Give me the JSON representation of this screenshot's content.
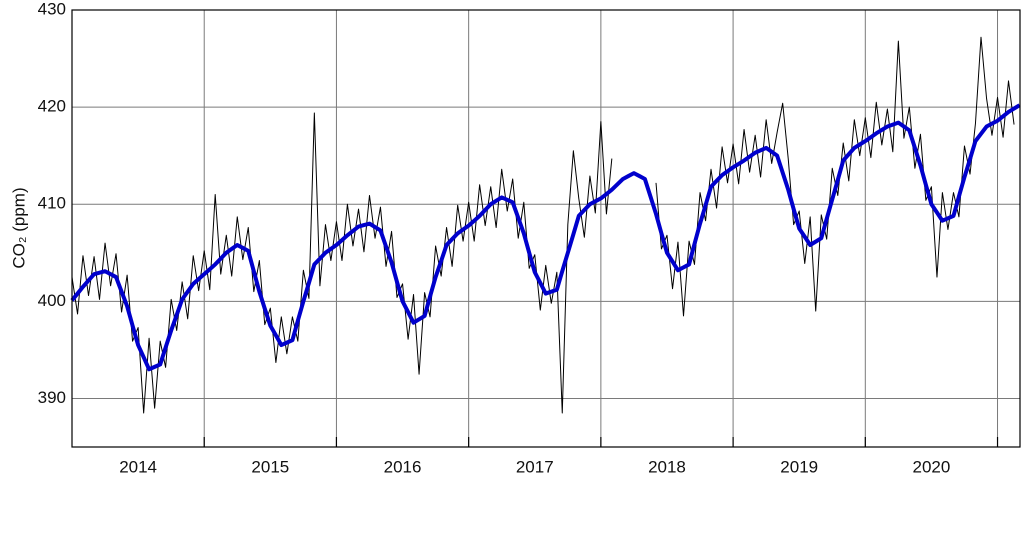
{
  "chart_data": {
    "type": "line",
    "y_label": "CO₂ (ppm)",
    "xlim": [
      2014,
      2021.17
    ],
    "xticks": [
      {
        "value": 2014.5,
        "label": "2014"
      },
      {
        "value": 2015.5,
        "label": "2015"
      },
      {
        "value": 2016.5,
        "label": "2016"
      },
      {
        "value": 2017.5,
        "label": "2017"
      },
      {
        "value": 2018.5,
        "label": "2018"
      },
      {
        "value": 2019.5,
        "label": "2019"
      },
      {
        "value": 2020.5,
        "label": "2020"
      }
    ],
    "xgridlines": [
      2015,
      2016,
      2017,
      2018,
      2019,
      2020,
      2021
    ],
    "ylim": [
      385,
      430
    ],
    "yticks": [
      390,
      400,
      410,
      420,
      430
    ],
    "grid": true,
    "x": [
      2014,
      2014.042,
      2014.083,
      2014.125,
      2014.167,
      2014.208,
      2014.25,
      2014.292,
      2014.333,
      2014.375,
      2014.417,
      2014.458,
      2014.5,
      2014.542,
      2014.583,
      2014.625,
      2014.667,
      2014.708,
      2014.75,
      2014.792,
      2014.833,
      2014.875,
      2014.917,
      2014.958,
      2015,
      2015.042,
      2015.083,
      2015.125,
      2015.167,
      2015.208,
      2015.25,
      2015.292,
      2015.333,
      2015.375,
      2015.417,
      2015.458,
      2015.5,
      2015.542,
      2015.583,
      2015.625,
      2015.667,
      2015.708,
      2015.75,
      2015.792,
      2015.833,
      2015.875,
      2015.917,
      2015.958,
      2016,
      2016.042,
      2016.083,
      2016.125,
      2016.167,
      2016.208,
      2016.25,
      2016.292,
      2016.333,
      2016.375,
      2016.417,
      2016.458,
      2016.5,
      2016.542,
      2016.583,
      2016.625,
      2016.667,
      2016.708,
      2016.75,
      2016.792,
      2016.833,
      2016.875,
      2016.917,
      2016.958,
      2017,
      2017.042,
      2017.083,
      2017.125,
      2017.167,
      2017.208,
      2017.25,
      2017.292,
      2017.333,
      2017.375,
      2017.417,
      2017.458,
      2017.5,
      2017.542,
      2017.583,
      2017.625,
      2017.667,
      2017.708,
      2017.75,
      2017.792,
      2017.833,
      2017.875,
      2017.917,
      2017.958,
      2018,
      2018.042,
      2018.083,
      2018.125,
      2018.167,
      2018.208,
      2018.25,
      2018.292,
      2018.333,
      2018.375,
      2018.417,
      2018.458,
      2018.5,
      2018.542,
      2018.583,
      2018.625,
      2018.667,
      2018.708,
      2018.75,
      2018.792,
      2018.833,
      2018.875,
      2018.917,
      2018.958,
      2019,
      2019.042,
      2019.083,
      2019.125,
      2019.167,
      2019.208,
      2019.25,
      2019.292,
      2019.333,
      2019.375,
      2019.417,
      2019.458,
      2019.5,
      2019.542,
      2019.583,
      2019.625,
      2019.667,
      2019.708,
      2019.75,
      2019.792,
      2019.833,
      2019.875,
      2019.917,
      2019.958,
      2020,
      2020.042,
      2020.083,
      2020.125,
      2020.167,
      2020.208,
      2020.25,
      2020.292,
      2020.333,
      2020.375,
      2020.417,
      2020.458,
      2020.5,
      2020.542,
      2020.583,
      2020.625,
      2020.667,
      2020.708,
      2020.75,
      2020.792,
      2020.833,
      2020.875,
      2020.917,
      2020.958,
      2021,
      2021.042,
      2021.083,
      2021.125,
      2021.167
    ],
    "series": [
      {
        "color": "#000000",
        "width": 1,
        "values": [
          402.5,
          398.7,
          404.7,
          400.6,
          404.6,
          400.2,
          406.0,
          401.6,
          404.9,
          398.9,
          402.7,
          395.9,
          397.3,
          388.5,
          396.2,
          389.0,
          395.9,
          393.2,
          400.2,
          397.0,
          402.0,
          398.2,
          404.7,
          401.1,
          405.2,
          401.2,
          411.0,
          402.8,
          406.8,
          402.6,
          408.7,
          404.3,
          407.6,
          401.0,
          404.2,
          397.6,
          399.3,
          393.7,
          398.4,
          394.6,
          398.4,
          395.9,
          403.2,
          400.3,
          419.4,
          401.6,
          407.9,
          404.2,
          408.2,
          404.2,
          410.0,
          405.7,
          409.5,
          405.1,
          410.9,
          406.5,
          409.7,
          403.6,
          407.2,
          400.4,
          401.8,
          396.1,
          400.7,
          392.5,
          400.9,
          398.4,
          405.7,
          402.6,
          407.6,
          403.6,
          409.9,
          406.2,
          410.2,
          406.2,
          412.0,
          407.8,
          411.8,
          407.6,
          413.6,
          409.3,
          412.6,
          406.5,
          410.2,
          403.4,
          404.8,
          399.1,
          403.7,
          399.8,
          403.0,
          388.5,
          407.9,
          415.5,
          410.6,
          406.6,
          412.9,
          409.1,
          418.5,
          409.0,
          414.7,
          null,
          null,
          null,
          null,
          null,
          null,
          null,
          412.2,
          405.4,
          406.8,
          401.3,
          406.1,
          398.5,
          406.2,
          403.8,
          411.2,
          408.3,
          413.6,
          409.6,
          415.9,
          412.2,
          416.2,
          412.1,
          417.7,
          413.3,
          417.1,
          412.8,
          418.7,
          414.2,
          417.4,
          420.4,
          414.7,
          407.9,
          409.3,
          403.9,
          408.7,
          399.0,
          408.9,
          406.4,
          413.7,
          410.9,
          416.3,
          412.4,
          418.7,
          415.0,
          418.9,
          414.8,
          420.5,
          416.1,
          419.8,
          415.4,
          426.8,
          416.8,
          420.0,
          413.7,
          417.2,
          410.4,
          411.8,
          402.5,
          411.2,
          407.4,
          411.2,
          408.7,
          416.0,
          413.1,
          418.3,
          427.2,
          420.9,
          417.1,
          421.0,
          416.9,
          422.7,
          418.2,
          null
        ]
      },
      {
        "color": "#0000cc",
        "width": 4,
        "values": [
          400.1,
          400.8,
          401.5,
          402.15,
          402.8,
          402.95,
          403.1,
          402.8,
          402.5,
          401.0,
          399.5,
          397.5,
          395.5,
          394.25,
          393.0,
          393.25,
          393.5,
          395.25,
          397.0,
          398.6,
          400.2,
          401.0,
          401.8,
          402.3,
          402.8,
          403.3,
          403.8,
          404.4,
          405.0,
          405.4,
          405.8,
          405.5,
          405.2,
          403.1,
          401.0,
          399.25,
          397.5,
          396.5,
          395.5,
          395.75,
          396.0,
          398.0,
          400.0,
          401.9,
          403.8,
          404.4,
          405.0,
          405.4,
          405.8,
          406.3,
          406.8,
          407.25,
          407.7,
          407.85,
          408.0,
          407.65,
          407.3,
          405.65,
          404.0,
          402.0,
          400.0,
          398.9,
          397.8,
          398.15,
          398.5,
          400.5,
          402.5,
          404.15,
          405.8,
          406.4,
          407.0,
          407.4,
          407.8,
          408.3,
          408.8,
          409.4,
          410.0,
          410.35,
          410.7,
          410.45,
          410.2,
          408.6,
          407.0,
          405.0,
          403.0,
          401.9,
          400.8,
          401.0,
          401.2,
          403.1,
          405.0,
          406.9,
          408.8,
          409.4,
          410.0,
          410.3,
          410.6,
          411.05,
          411.5,
          412.05,
          412.6,
          412.9,
          413.2,
          412.9,
          412.6,
          410.8,
          409.0,
          407.0,
          405.0,
          404.1,
          403.2,
          403.5,
          403.8,
          405.9,
          408.0,
          409.9,
          411.8,
          412.4,
          413.0,
          413.4,
          413.8,
          414.15,
          414.5,
          414.9,
          415.3,
          415.55,
          415.8,
          415.4,
          415.0,
          413.25,
          411.5,
          409.5,
          407.5,
          406.65,
          405.8,
          406.15,
          406.5,
          408.5,
          410.5,
          412.5,
          414.5,
          415.15,
          415.8,
          416.15,
          416.5,
          416.9,
          417.3,
          417.65,
          418.0,
          418.2,
          418.4,
          418.0,
          417.6,
          415.8,
          414.0,
          412.0,
          410.0,
          409.15,
          408.3,
          408.55,
          408.8,
          410.8,
          412.8,
          414.65,
          416.5,
          417.25,
          418.0,
          418.3,
          418.6,
          419.05,
          419.5,
          419.85,
          420.2
        ]
      }
    ]
  }
}
